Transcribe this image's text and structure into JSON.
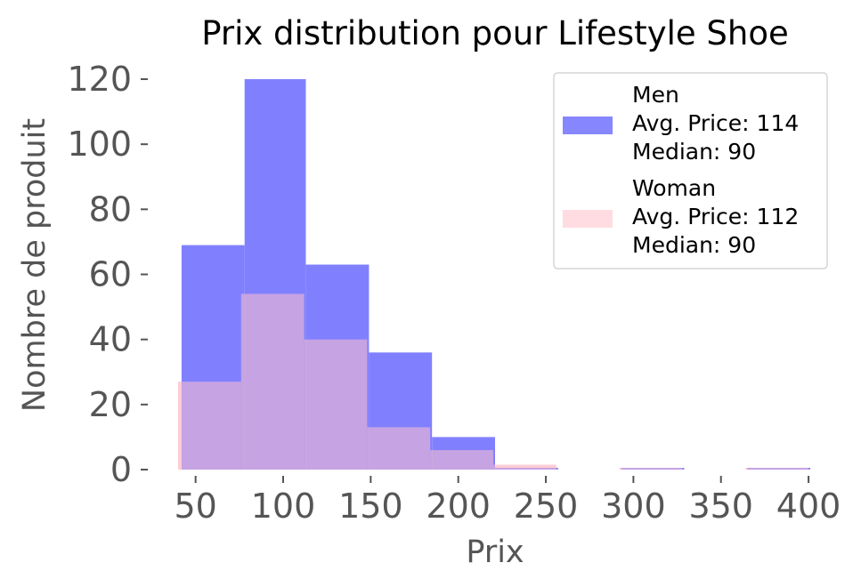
{
  "chart_data": {
    "type": "bar",
    "title": "Prix distribution pour Lifestyle Shoe",
    "xlabel": "Prix",
    "ylabel": "Nombre de produit",
    "xlim": [
      40,
      402
    ],
    "ylim": [
      0,
      120
    ],
    "xticks": [
      50,
      100,
      150,
      200,
      250,
      300,
      350,
      400
    ],
    "yticks": [
      0,
      20,
      40,
      60,
      80,
      100,
      120
    ],
    "grid": false,
    "legend_position": "top-right",
    "series": [
      {
        "name": "Men",
        "legend_lines": [
          "Men",
          "Avg. Price: 114",
          "Median: 90"
        ],
        "color": "#8080ff",
        "bins": [
          {
            "x0": 42,
            "x1": 78,
            "count": 69
          },
          {
            "x0": 78,
            "x1": 113,
            "count": 120
          },
          {
            "x0": 113,
            "x1": 149,
            "count": 63
          },
          {
            "x0": 149,
            "x1": 185,
            "count": 36
          },
          {
            "x0": 185,
            "x1": 221,
            "count": 10
          },
          {
            "x0": 221,
            "x1": 257,
            "count": 0.4
          },
          {
            "x0": 257,
            "x1": 293,
            "count": 0
          },
          {
            "x0": 293,
            "x1": 329,
            "count": 0.5
          },
          {
            "x0": 329,
            "x1": 365,
            "count": 0
          },
          {
            "x0": 365,
            "x1": 401,
            "count": 0.5
          }
        ]
      },
      {
        "name": "Woman",
        "legend_lines": [
          "Woman",
          "Avg. Price: 112",
          "Median: 90"
        ],
        "color": "#ffc0cb",
        "bins": [
          {
            "x0": 40,
            "x1": 76,
            "count": 27
          },
          {
            "x0": 76,
            "x1": 112,
            "count": 54
          },
          {
            "x0": 112,
            "x1": 148,
            "count": 40
          },
          {
            "x0": 148,
            "x1": 184,
            "count": 13
          },
          {
            "x0": 184,
            "x1": 220,
            "count": 6
          },
          {
            "x0": 220,
            "x1": 256,
            "count": 1.5
          },
          {
            "x0": 256,
            "x1": 292,
            "count": 0
          },
          {
            "x0": 292,
            "x1": 328,
            "count": 0.5
          },
          {
            "x0": 328,
            "x1": 364,
            "count": 0
          },
          {
            "x0": 364,
            "x1": 400,
            "count": 0.5
          }
        ]
      }
    ]
  }
}
